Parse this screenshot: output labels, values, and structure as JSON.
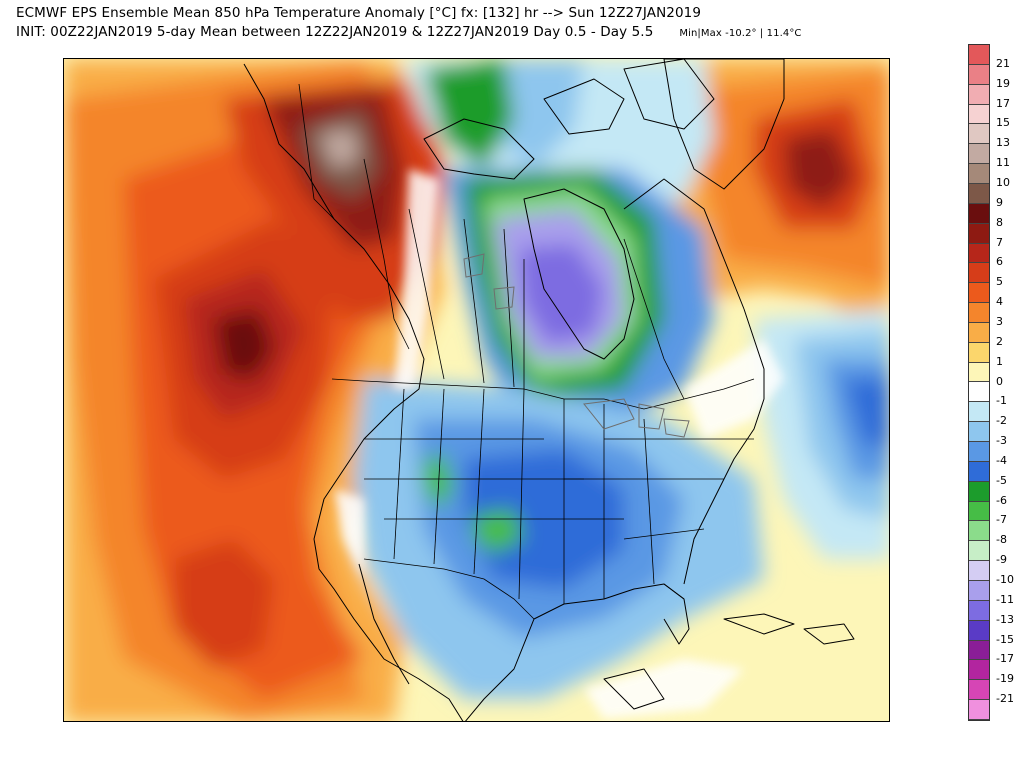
{
  "header": {
    "line1": "ECMWF EPS Ensemble Mean 850 hPa Temperature Anomaly [°C] fx: [132] hr --> Sun 12Z27JAN2019",
    "line2": "INIT: 00Z22JAN2019 5-day Mean between 12Z22JAN2019 & 12Z27JAN2019    Day 0.5 - Day 5.5",
    "minmax": "Min|Max -10.2° | 11.4°C"
  },
  "legend": {
    "labels": [
      "21",
      "19",
      "17",
      "15",
      "13",
      "11",
      "10",
      "9",
      "8",
      "7",
      "6",
      "5",
      "4",
      "3",
      "2",
      "1",
      "0",
      "-1",
      "-2",
      "-3",
      "-4",
      "-5",
      "-6",
      "-7",
      "-8",
      "-9",
      "-10",
      "-11",
      "-13",
      "-15",
      "-17",
      "-19",
      "-21"
    ],
    "colors": [
      "#e3585a",
      "#ea8086",
      "#f1adb2",
      "#f6d2d2",
      "#e0c8c2",
      "#c2aaa2",
      "#a58979",
      "#7d5848",
      "#6a0e0e",
      "#8e1a12",
      "#b6261a",
      "#d63d19",
      "#ec5a1c",
      "#f4852c",
      "#f9ad47",
      "#fbd66c",
      "#fdf6b8",
      "#ffffff",
      "#c4e8f5",
      "#8ec6ee",
      "#5a98e4",
      "#2f6cd8",
      "#1c9c2c",
      "#46bd46",
      "#8bdc8b",
      "#c7eec7",
      "#d4cdf3",
      "#a99fec",
      "#7d6ce1",
      "#5a3bc6",
      "#8a1e97",
      "#b2259f",
      "#d645b5",
      "#f090de"
    ]
  },
  "map": {
    "background_anomaly_color": "#fdf6b8",
    "features": [
      "pacific-warm-anomaly",
      "alaska-warm-anomaly",
      "yukon-warm-core",
      "greenland-warm-anomaly",
      "hudson-bay-cold-core",
      "central-us-cold-anomaly",
      "atlantic-cold-anomaly",
      "coastlines",
      "borders"
    ]
  }
}
